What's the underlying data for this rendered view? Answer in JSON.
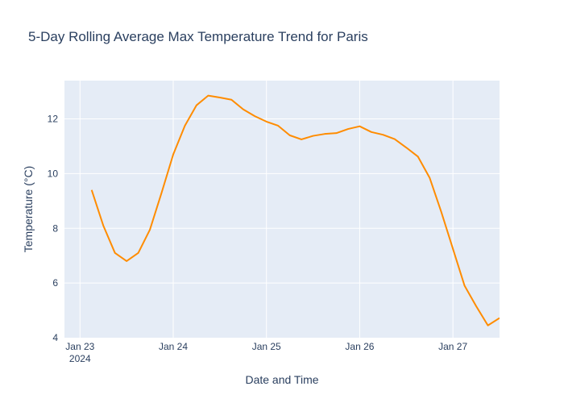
{
  "chart_data": {
    "type": "line",
    "title": "5-Day Rolling Average Max Temperature Trend for Paris",
    "xlabel": "Date and Time",
    "ylabel": "Temperature (°C)",
    "xlim": [
      "2024-01-22 20:00",
      "2024-01-27 12:00"
    ],
    "ylim": [
      4,
      13.4
    ],
    "x_ticks": [
      {
        "value": "2024-01-23 00:00",
        "label": "Jan 23",
        "sublabel": "2024"
      },
      {
        "value": "2024-01-24 00:00",
        "label": "Jan 24",
        "sublabel": ""
      },
      {
        "value": "2024-01-25 00:00",
        "label": "Jan 25",
        "sublabel": ""
      },
      {
        "value": "2024-01-26 00:00",
        "label": "Jan 26",
        "sublabel": ""
      },
      {
        "value": "2024-01-27 00:00",
        "label": "Jan 27",
        "sublabel": ""
      }
    ],
    "y_ticks": [
      4,
      6,
      8,
      10,
      12
    ],
    "grid": true,
    "line_color": "#ff8c00",
    "plot_background": "#e5ecf6",
    "series": [
      {
        "name": "",
        "x": [
          "2024-01-23 03:00",
          "2024-01-23 06:00",
          "2024-01-23 09:00",
          "2024-01-23 12:00",
          "2024-01-23 15:00",
          "2024-01-23 18:00",
          "2024-01-23 21:00",
          "2024-01-24 00:00",
          "2024-01-24 03:00",
          "2024-01-24 06:00",
          "2024-01-24 09:00",
          "2024-01-24 12:00",
          "2024-01-24 15:00",
          "2024-01-24 18:00",
          "2024-01-24 21:00",
          "2024-01-25 00:00",
          "2024-01-25 03:00",
          "2024-01-25 06:00",
          "2024-01-25 09:00",
          "2024-01-25 12:00",
          "2024-01-25 15:00",
          "2024-01-25 18:00",
          "2024-01-25 21:00",
          "2024-01-26 00:00",
          "2024-01-26 03:00",
          "2024-01-26 06:00",
          "2024-01-26 09:00",
          "2024-01-26 12:00",
          "2024-01-26 15:00",
          "2024-01-26 18:00",
          "2024-01-26 21:00",
          "2024-01-27 00:00",
          "2024-01-27 03:00",
          "2024-01-27 06:00",
          "2024-01-27 09:00",
          "2024-01-27 12:00"
        ],
        "y": [
          9.4,
          8.1,
          7.1,
          6.8,
          7.1,
          7.95,
          9.3,
          10.7,
          11.75,
          12.5,
          12.85,
          12.78,
          12.7,
          12.35,
          12.1,
          11.9,
          11.75,
          11.4,
          11.25,
          11.38,
          11.45,
          11.48,
          11.63,
          11.73,
          11.52,
          11.42,
          11.26,
          10.95,
          10.62,
          9.85,
          8.6,
          7.25,
          5.9,
          5.15,
          4.45,
          4.72
        ]
      }
    ]
  }
}
